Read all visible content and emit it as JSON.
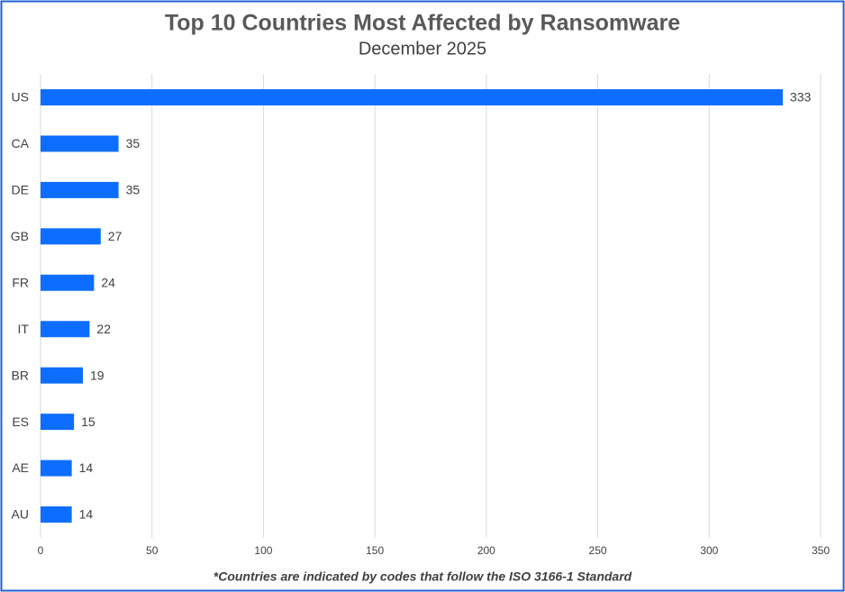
{
  "chart_data": {
    "type": "bar",
    "orientation": "horizontal",
    "title": "Top 10 Countries Most Affected by Ransomware",
    "subtitle": "December 2025",
    "categories": [
      "US",
      "CA",
      "DE",
      "GB",
      "FR",
      "IT",
      "BR",
      "ES",
      "AE",
      "AU"
    ],
    "values": [
      333,
      35,
      35,
      27,
      24,
      22,
      19,
      15,
      14,
      14
    ],
    "color": "#0d6efd",
    "xlim": [
      0,
      350
    ],
    "xticks": [
      0,
      50,
      100,
      150,
      200,
      250,
      300,
      350
    ],
    "grid": true,
    "footnote": "*Countries are indicated by codes that follow the ISO 3166-1 Standard"
  }
}
